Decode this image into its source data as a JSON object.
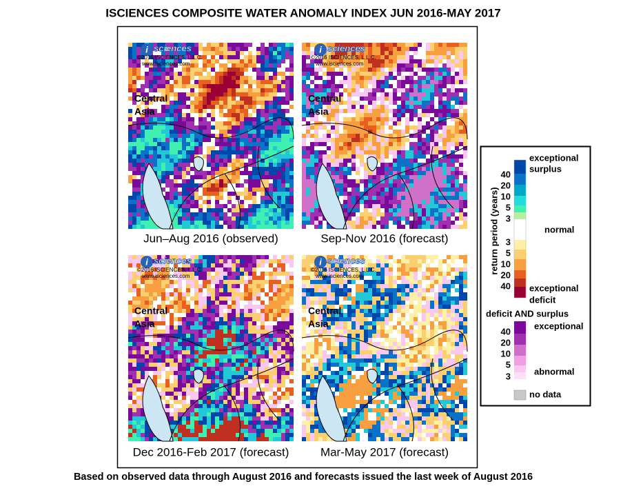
{
  "title": "ISCIENCES COMPOSITE WATER ANOMALY INDEX JUN 2016-MAY 2017",
  "panels": [
    {
      "caption": "Jun–Aug 2016 (observed)",
      "region": [
        "Central",
        "Asia"
      ]
    },
    {
      "caption": "Sep-Nov 2016 (forecast)",
      "region": [
        "Central",
        "Asia"
      ]
    },
    {
      "caption": "Dec 2016-Feb 2017 (forecast)",
      "region": [
        "Central",
        "Asia"
      ]
    },
    {
      "caption": "Mar-May 2017 (forecast)",
      "region": [
        "Central",
        "Asia"
      ]
    }
  ],
  "logo": {
    "name": "sciences",
    "letter": "i",
    "copyright": "©2016 ISCIENCES, L.L.C.",
    "url": "www.isciences.com"
  },
  "legend": {
    "axis_label": "return period (years)",
    "surplus_label": [
      "exceptional",
      "surplus"
    ],
    "surplus_ticks": [
      "40",
      "20",
      "10",
      "5",
      "3"
    ],
    "normal": "normal",
    "deficit_ticks": [
      "3",
      "5",
      "10",
      "20",
      "40"
    ],
    "deficit_label": [
      "exceptional",
      "deficit"
    ],
    "both_title": "deficit AND surplus",
    "both_top": "exceptional",
    "both_ticks": [
      "40",
      "20",
      "10",
      "5",
      "3"
    ],
    "both_bottom": "abnormal",
    "no_data": "no data"
  },
  "footer": "Based on observed data through August 2016 and forecasts issued the last week of August 2016"
}
